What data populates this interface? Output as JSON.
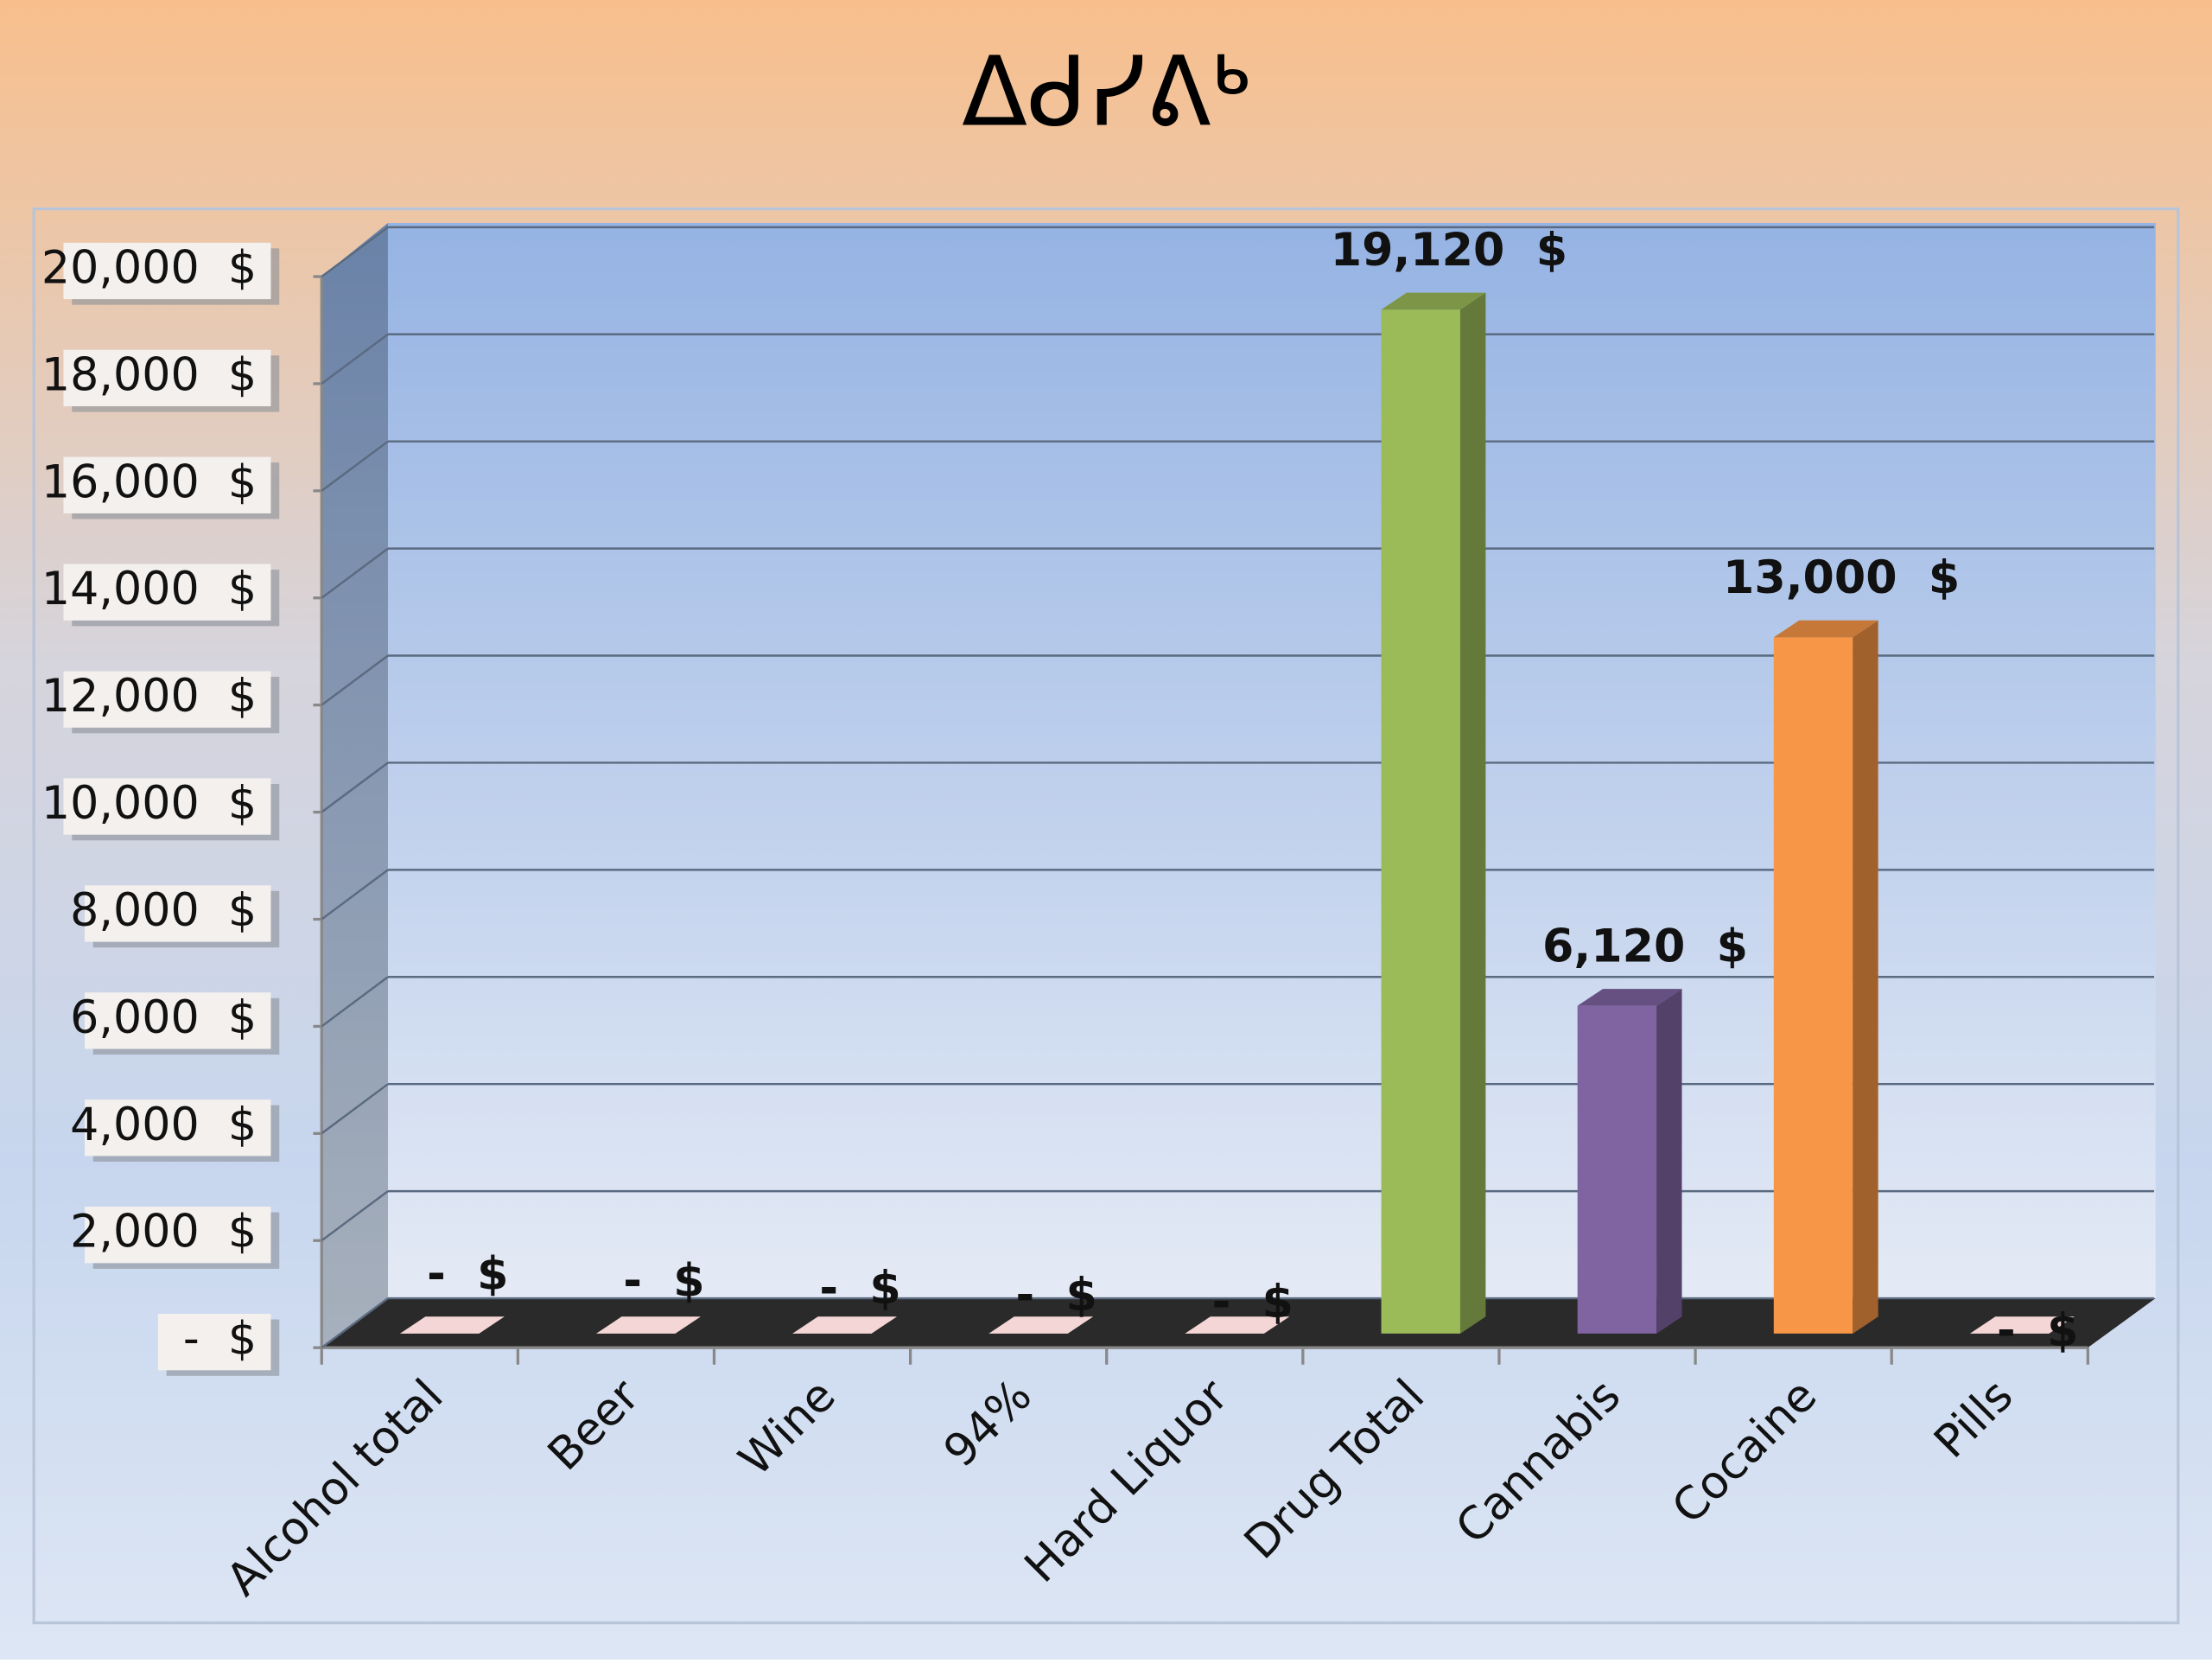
{
  "chart_data": {
    "type": "bar3d",
    "title": "ᐃᑯᓯᕕᒃ",
    "categories": [
      "Alcohol total",
      "Beer",
      "Wine",
      "94%",
      "Hard Liquor",
      "Drug Total",
      "Cannabis",
      "Cocaine",
      "Pills"
    ],
    "values": [
      0,
      0,
      0,
      0,
      0,
      19120,
      6120,
      13000,
      0
    ],
    "value_labels": [
      "-  $",
      "-  $",
      "-  $",
      "-  $",
      "-  $",
      "19,120  $",
      "6,120  $",
      "13,000  $",
      "-  $"
    ],
    "colors": [
      "#f0c4c4",
      "#f0c4c4",
      "#f0c4c4",
      "#f0c4c4",
      "#f0c4c4",
      "#9bbb59",
      "#8064a2",
      "#f79646",
      "#f0c4c4"
    ],
    "ylim": [
      0,
      20000
    ],
    "yticks": [
      {
        "value": 0,
        "label": "-  $"
      },
      {
        "value": 2000,
        "label": "2,000  $"
      },
      {
        "value": 4000,
        "label": "4,000  $"
      },
      {
        "value": 6000,
        "label": "6,000  $"
      },
      {
        "value": 8000,
        "label": "8,000  $"
      },
      {
        "value": 10000,
        "label": "10,000  $"
      },
      {
        "value": 12000,
        "label": "12,000  $"
      },
      {
        "value": 14000,
        "label": "14,000  $"
      },
      {
        "value": 16000,
        "label": "16,000  $"
      },
      {
        "value": 18000,
        "label": "18,000  $"
      },
      {
        "value": 20000,
        "label": "20,000  $"
      }
    ],
    "grid": true
  }
}
